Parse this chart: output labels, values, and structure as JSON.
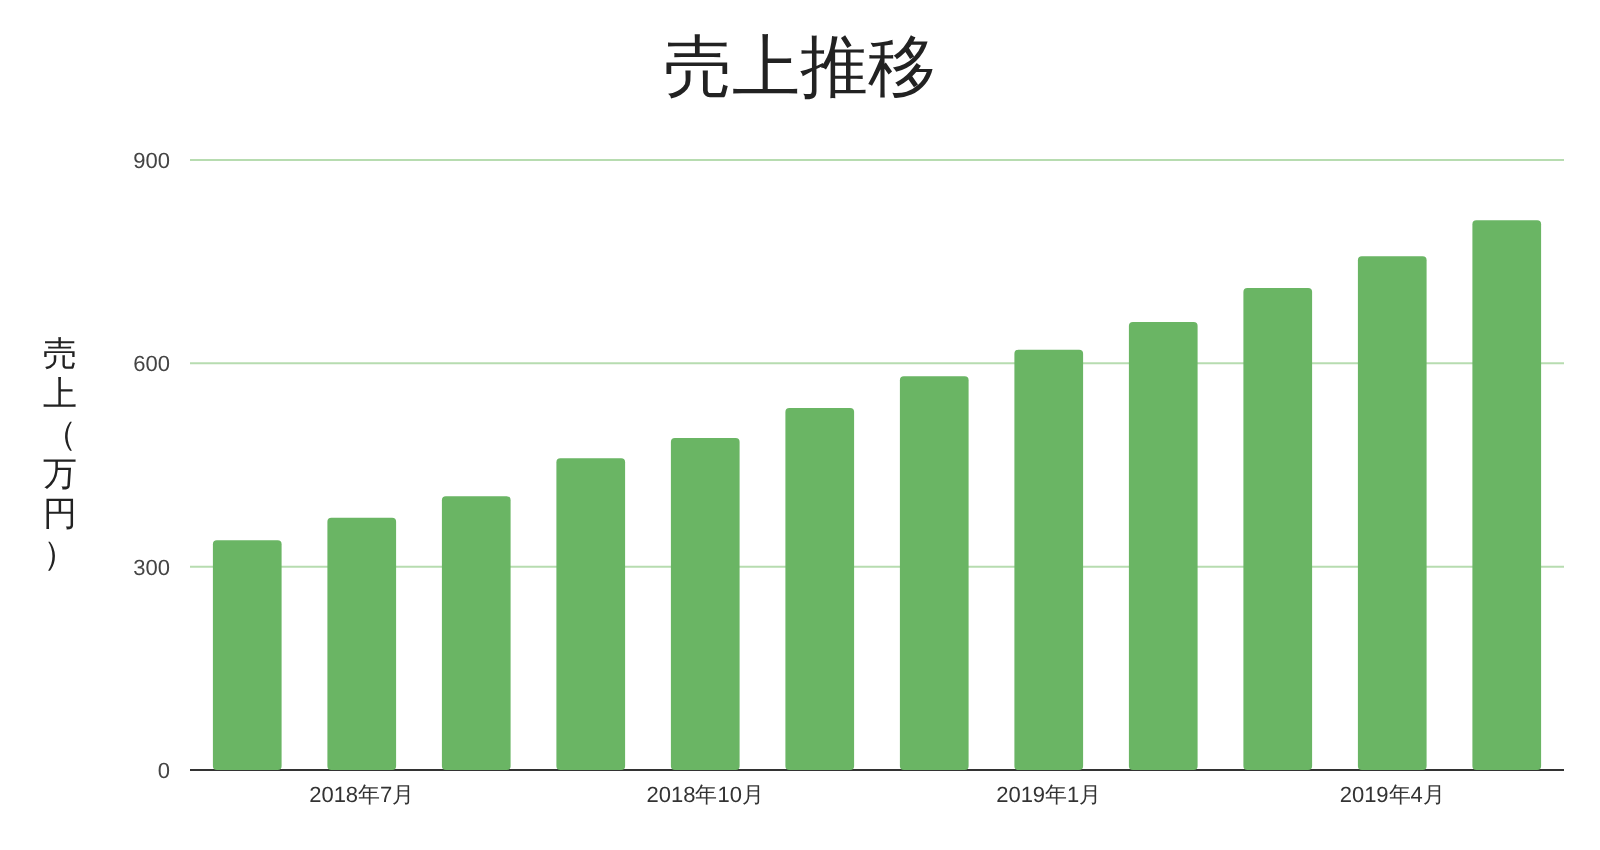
{
  "chart_data": {
    "type": "bar",
    "title": "売上推移",
    "ylabel": "売上（万円）",
    "categories": [
      null,
      "2018年7月",
      null,
      null,
      "2018年10月",
      null,
      null,
      "2019年1月",
      null,
      null,
      "2019年4月",
      null
    ],
    "values": [
      339,
      372,
      404,
      460,
      490,
      534,
      581,
      620,
      661,
      711,
      758,
      811
    ],
    "color": "#6ab564",
    "ylim": [
      0,
      900
    ],
    "yticks": [
      0,
      300,
      600,
      900
    ],
    "grid": "y"
  }
}
